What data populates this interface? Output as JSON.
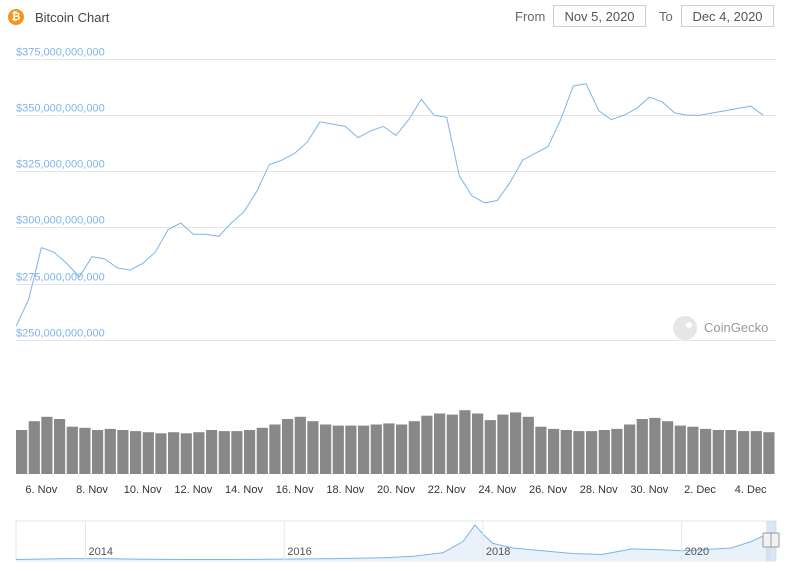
{
  "header": {
    "title": "Bitcoin Chart",
    "coin_icon_glyph": "₿",
    "from_label": "From",
    "from_value": "Nov 5, 2020",
    "to_label": "To",
    "to_value": "Dec 4, 2020"
  },
  "credit": "CoinGecko",
  "colors": {
    "line": "#7cb5ec",
    "volume": "#666666",
    "accent": "#f7931a"
  },
  "chart_data": {
    "type": "line",
    "title": "Bitcoin Chart",
    "series": [
      {
        "x": [
          "2020-11-05",
          "2020-11-05 12:00",
          "2020-11-06",
          "2020-11-06 12:00",
          "2020-11-07",
          "2020-11-07 12:00",
          "2020-11-08",
          "2020-11-08 12:00",
          "2020-11-09",
          "2020-11-09 12:00",
          "2020-11-10",
          "2020-11-10 12:00",
          "2020-11-11",
          "2020-11-11 12:00",
          "2020-11-12",
          "2020-11-12 12:00",
          "2020-11-13",
          "2020-11-13 12:00",
          "2020-11-14",
          "2020-11-14 12:00",
          "2020-11-15",
          "2020-11-15 12:00",
          "2020-11-16",
          "2020-11-16 12:00",
          "2020-11-17",
          "2020-11-17 12:00",
          "2020-11-18",
          "2020-11-18 12:00",
          "2020-11-19",
          "2020-11-19 12:00",
          "2020-11-20",
          "2020-11-20 12:00",
          "2020-11-21",
          "2020-11-21 12:00",
          "2020-11-22",
          "2020-11-22 12:00",
          "2020-11-23",
          "2020-11-23 12:00",
          "2020-11-24",
          "2020-11-24 12:00",
          "2020-11-25",
          "2020-11-25 12:00",
          "2020-11-26",
          "2020-11-26 12:00",
          "2020-11-27",
          "2020-11-27 12:00",
          "2020-11-28",
          "2020-11-28 12:00",
          "2020-11-29",
          "2020-11-29 12:00",
          "2020-11-30",
          "2020-11-30 12:00",
          "2020-12-01",
          "2020-12-01 12:00",
          "2020-12-02",
          "2020-12-02 12:00",
          "2020-12-03",
          "2020-12-03 12:00",
          "2020-12-04",
          "2020-12-04 12:00"
        ],
        "y": [
          256000000000,
          268000000000,
          291000000000,
          289000000000,
          284000000000,
          278000000000,
          287000000000,
          286000000000,
          282000000000,
          281000000000,
          284000000000,
          289000000000,
          299000000000,
          302000000000,
          297000000000,
          297000000000,
          296000000000,
          302000000000,
          307000000000,
          316000000000,
          328000000000,
          330000000000,
          333000000000,
          338000000000,
          347000000000,
          346000000000,
          345000000000,
          340000000000,
          343000000000,
          345000000000,
          341000000000,
          348000000000,
          357000000000,
          350000000000,
          349000000000,
          323000000000,
          314000000000,
          311000000000,
          312000000000,
          320000000000,
          330000000000,
          333000000000,
          336000000000,
          348000000000,
          363000000000,
          364000000000,
          352000000000,
          348000000000,
          350000000000,
          353000000000,
          358000000000,
          356000000000,
          351000000000,
          350000000000,
          350000000000,
          351000000000,
          352000000000,
          353000000000,
          354000000000,
          350000000000
        ]
      }
    ],
    "volume": [
      40,
      48,
      52,
      50,
      43,
      42,
      40,
      41,
      40,
      39,
      38,
      37,
      38,
      37,
      38,
      40,
      39,
      39,
      40,
      42,
      45,
      50,
      52,
      48,
      45,
      44,
      44,
      44,
      45,
      46,
      45,
      48,
      53,
      55,
      54,
      58,
      55,
      49,
      54,
      56,
      52,
      43,
      41,
      40,
      39,
      39,
      40,
      41,
      45,
      50,
      51,
      48,
      44,
      43,
      41,
      40,
      40,
      39,
      39,
      38
    ],
    "ylim": [
      245000000000,
      375000000000
    ],
    "y_ticks": [
      "$250,000,000,000",
      "$275,000,000,000",
      "$300,000,000,000",
      "$325,000,000,000",
      "$350,000,000,000",
      "$375,000,000,000"
    ],
    "y_tick_values": [
      250000000000,
      275000000000,
      300000000000,
      325000000000,
      350000000000,
      375000000000
    ],
    "x_ticks": [
      "6. Nov",
      "8. Nov",
      "10. Nov",
      "12. Nov",
      "14. Nov",
      "16. Nov",
      "18. Nov",
      "20. Nov",
      "22. Nov",
      "24. Nov",
      "26. Nov",
      "28. Nov",
      "30. Nov",
      "2. Dec",
      "4. Dec"
    ],
    "x_tick_dates": [
      "2020-11-06",
      "2020-11-08",
      "2020-11-10",
      "2020-11-12",
      "2020-11-14",
      "2020-11-16",
      "2020-11-18",
      "2020-11-20",
      "2020-11-22",
      "2020-11-24",
      "2020-11-26",
      "2020-11-28",
      "2020-11-30",
      "2020-12-02",
      "2020-12-04"
    ],
    "navigator": {
      "labels": [
        "2014",
        "2016",
        "2018",
        "2020"
      ],
      "label_years": [
        2014,
        2016,
        2018,
        2020
      ],
      "range": [
        2013.3,
        2020.95
      ],
      "series_x": [
        2013.3,
        2013.8,
        2014.2,
        2014.6,
        2015.0,
        2015.5,
        2016.0,
        2016.5,
        2017.0,
        2017.3,
        2017.6,
        2017.8,
        2017.92,
        2018.0,
        2018.1,
        2018.3,
        2018.6,
        2018.9,
        2019.2,
        2019.5,
        2019.8,
        2020.0,
        2020.2,
        2020.5,
        2020.7,
        2020.9
      ],
      "series_v": [
        0.5,
        1.5,
        1.5,
        0.8,
        0.5,
        0.5,
        1.0,
        1.5,
        2.5,
        4,
        8,
        20,
        38,
        28,
        18,
        13,
        10,
        7,
        6,
        12,
        11,
        10,
        11,
        13,
        20,
        30
      ]
    }
  }
}
